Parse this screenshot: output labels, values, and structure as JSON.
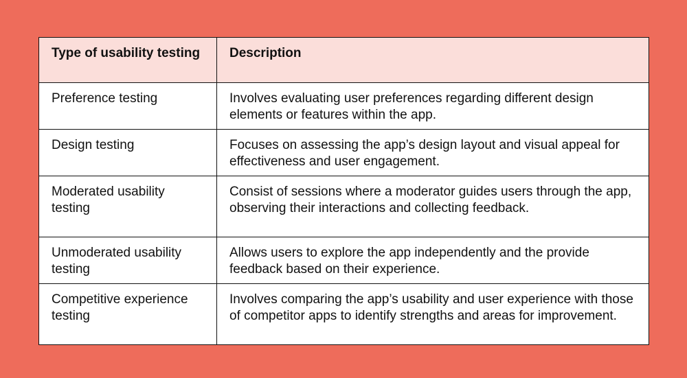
{
  "colors": {
    "background": "#EE6C5B",
    "header": "#FBDEDA"
  },
  "table": {
    "headers": [
      "Type of usability testing",
      "Description"
    ],
    "rows": [
      {
        "type": "Preference testing",
        "description": "Involves evaluating user preferences regarding different design elements or features within the app."
      },
      {
        "type": "Design testing",
        "description": "Focuses on assessing the app’s design layout and visual appeal for effectiveness and user engagement."
      },
      {
        "type": "Moderated usability testing",
        "description": "Consist of sessions where a moderator guides users through the app, observing their interactions and collecting feedback."
      },
      {
        "type": "Unmoderated usability testing",
        "description": "Allows users to explore the app independently and the provide feedback based on their experience."
      },
      {
        "type": "Competitive experience testing",
        "description": "Involves comparing the app’s usability and user experience with those of competitor apps to identify strengths and areas for improvement."
      }
    ]
  }
}
